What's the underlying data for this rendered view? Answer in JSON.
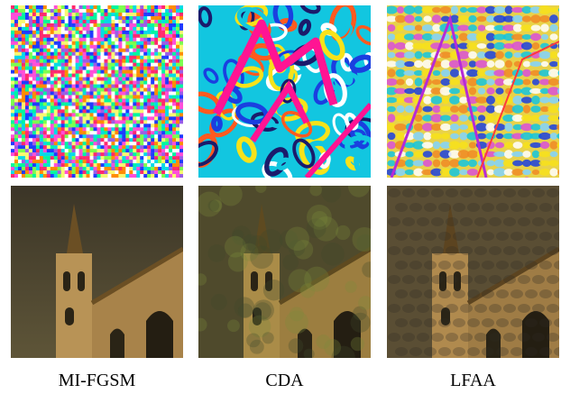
{
  "figure": {
    "columns": [
      {
        "label": "MI-FGSM",
        "perturbation": "dense random multicolor noise",
        "adversarial": "clean-looking church photo with faint noise"
      },
      {
        "label": "CDA",
        "perturbation": "saturated psychedelic swirl pattern with magenta church outline",
        "adversarial": "church photo with blotchy greenish texture"
      },
      {
        "label": "LFAA",
        "perturbation": "colorful tiled texture following church edges",
        "adversarial": "church photo with dark tiled texture overlay"
      }
    ],
    "colors": {
      "sky": "#4a4130",
      "stone": "#b08a4e",
      "stone_dark": "#6e5226",
      "magenta": "#ff1493",
      "cyan": "#12c6e0",
      "yellow": "#f7e21a",
      "blue": "#1a3fe0"
    }
  }
}
